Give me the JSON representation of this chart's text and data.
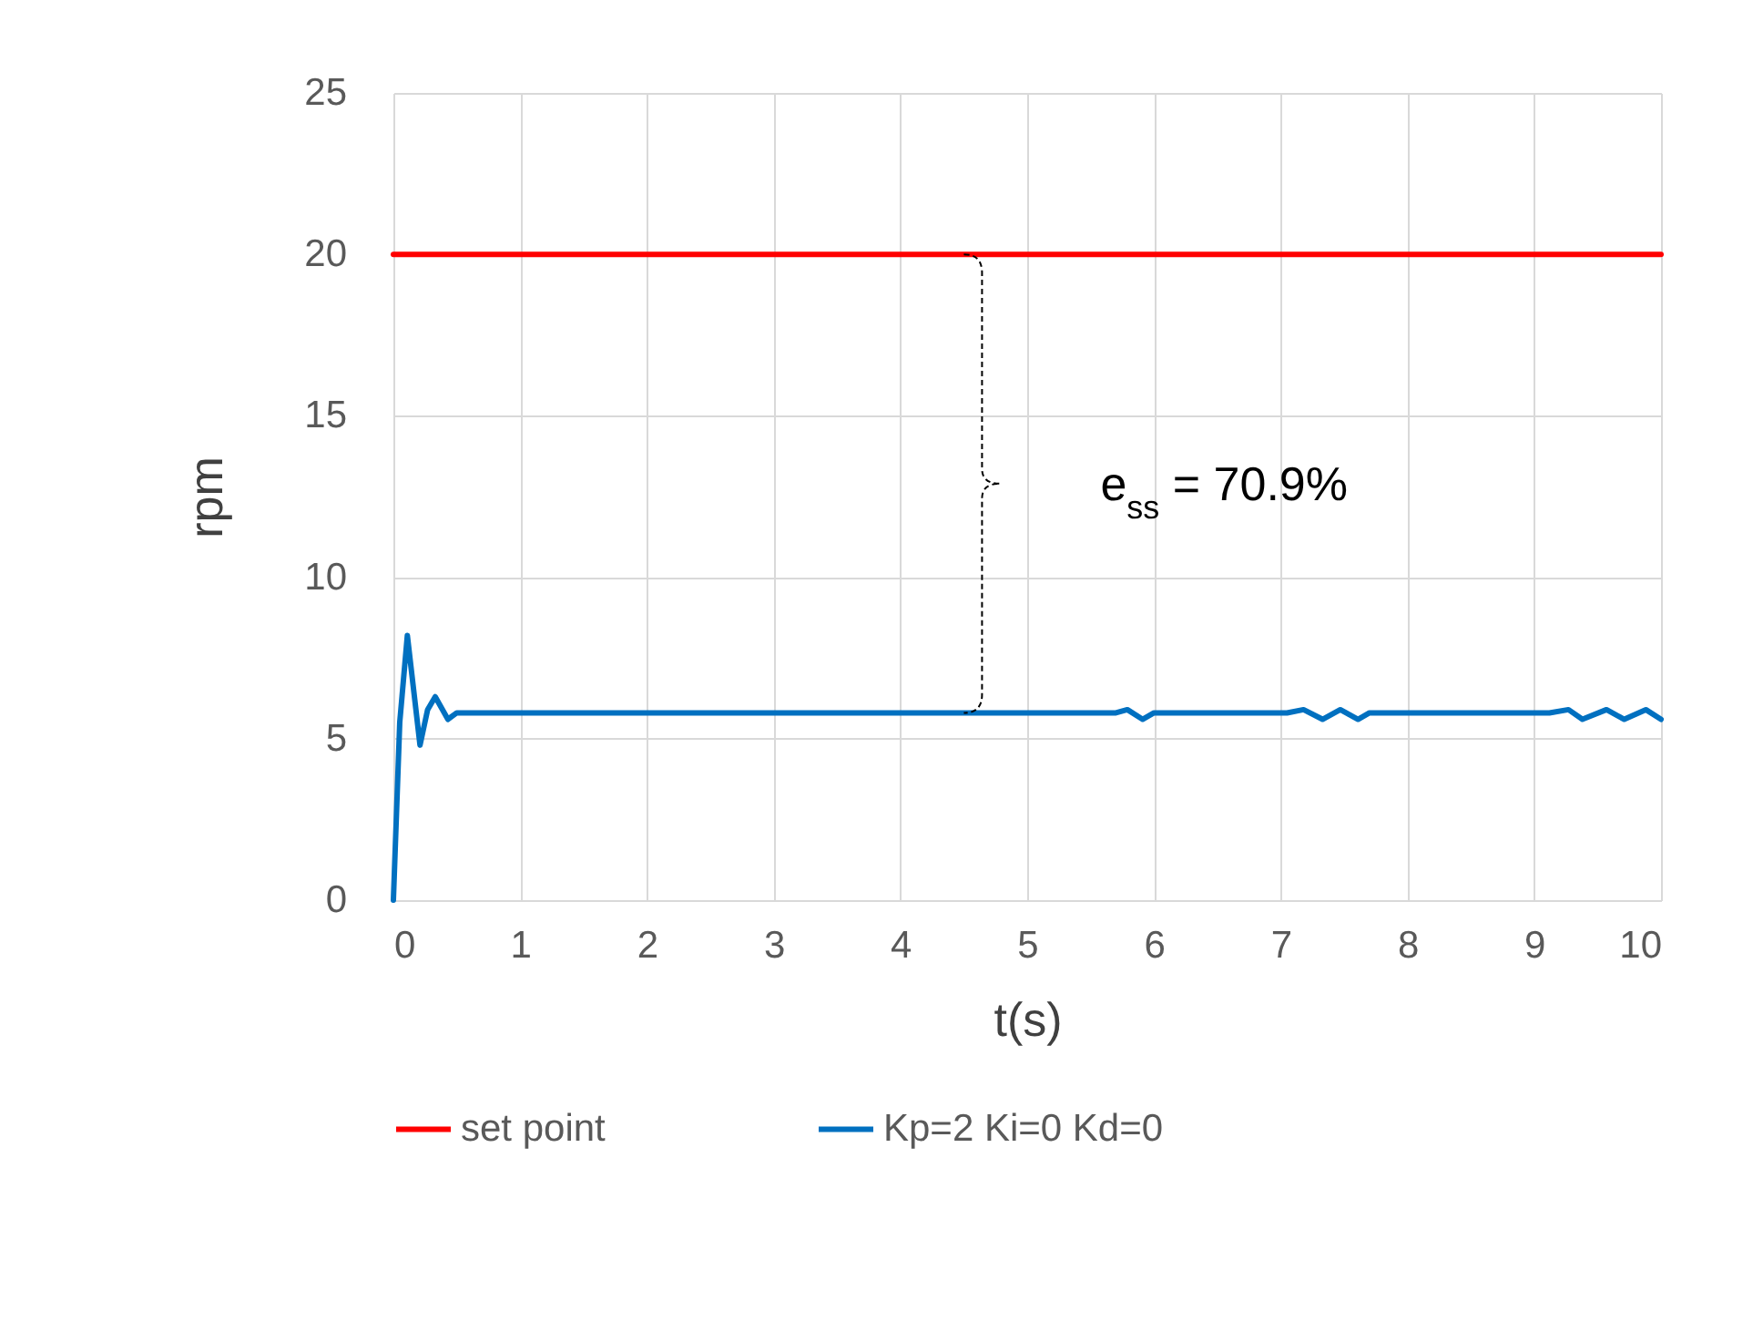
{
  "chart_data": {
    "type": "line",
    "xlabel": "t(s)",
    "ylabel": "rpm",
    "xlim": [
      0,
      10
    ],
    "xticks": [
      0,
      1,
      2,
      3,
      4,
      5,
      6,
      7,
      8,
      9,
      10
    ],
    "ylim": [
      0,
      25
    ],
    "yticks": [
      0,
      5,
      10,
      15,
      20,
      25
    ],
    "grid": true,
    "legend": "bottom",
    "series": [
      {
        "name": "set point",
        "color": "#ff0000",
        "x": [
          0,
          10
        ],
        "values": [
          20,
          20
        ]
      },
      {
        "name": "Kp=2 Ki=0 Kd=0",
        "color": "#0070c0",
        "x": [
          0,
          0.05,
          0.11,
          0.21,
          0.27,
          0.33,
          0.43,
          0.5,
          5.7,
          5.79,
          5.91,
          6.0,
          7.05,
          7.18,
          7.33,
          7.47,
          7.61,
          7.7,
          9.12,
          9.27,
          9.38,
          9.57,
          9.71,
          9.88,
          10.0
        ],
        "values": [
          0,
          5.5,
          8.2,
          4.8,
          5.9,
          6.3,
          5.6,
          5.8,
          5.8,
          5.9,
          5.6,
          5.8,
          5.8,
          5.9,
          5.6,
          5.9,
          5.6,
          5.8,
          5.8,
          5.9,
          5.6,
          5.9,
          5.6,
          5.9,
          5.6
        ]
      }
    ],
    "annotations": [
      "e$_{ss}$ = 70.9%"
    ]
  }
}
